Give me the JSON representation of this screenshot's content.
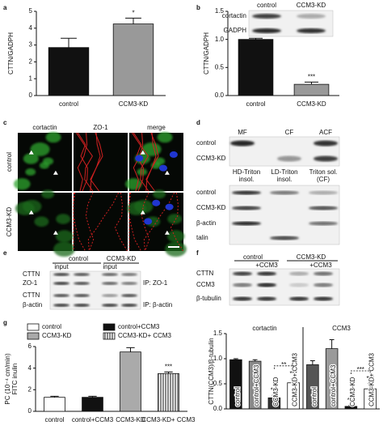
{
  "chart_data": [
    {
      "type": "bar",
      "panel": "a",
      "ylabel": "CTTN/GADPH",
      "categories": [
        "control",
        "CCM3-KD"
      ],
      "values": [
        2.85,
        4.25
      ],
      "errors": [
        0.55,
        0.35
      ],
      "colors": [
        "#111111",
        "#999999"
      ],
      "significance": [
        null,
        "*"
      ],
      "ylim": [
        0,
        5
      ],
      "yticks": [
        0,
        1,
        2,
        3,
        4,
        5
      ]
    },
    {
      "type": "bar",
      "panel": "b",
      "ylabel": "CTTN/GADPH",
      "categories": [
        "control",
        "CCM3-KD"
      ],
      "values": [
        1.0,
        0.2
      ],
      "errors": [
        0.02,
        0.04
      ],
      "colors": [
        "#111111",
        "#999999"
      ],
      "significance": [
        null,
        "***"
      ],
      "ylim": [
        0,
        1.5
      ],
      "yticks": [
        {
          "value": 0,
          "label": "0.0"
        },
        {
          "value": 0.5,
          "label": "0.5"
        },
        {
          "value": 1,
          "label": "1.0"
        },
        {
          "value": 1.5,
          "label": "1.5"
        }
      ]
    },
    {
      "type": "bar",
      "panel": "g",
      "ylabel": [
        "PC (10⁻⁴ cm/min)",
        "FITC inulin"
      ],
      "categories": [
        "control",
        "control+CCM3",
        "CCM3-KD",
        "CCM3-KD+ CCM3"
      ],
      "values": [
        1.3,
        1.3,
        5.5,
        3.5
      ],
      "errors": [
        0.1,
        0.1,
        0.4,
        0.15
      ],
      "colors": [
        "#ffffff",
        "#111111",
        "#aaaaaa",
        "#ffffff"
      ],
      "hatch": [
        false,
        false,
        false,
        true
      ],
      "significance": [
        null,
        null,
        null,
        "***"
      ],
      "legend": [
        "control",
        "control+CCM3",
        "CCM3-KD",
        "CCM3-KD+ CCM3"
      ],
      "ylim": [
        0,
        6
      ],
      "yticks": [
        0,
        2,
        4,
        6
      ]
    },
    {
      "type": "bar",
      "ylabel": "CTTN(CCM3)/β-tubulin",
      "groups": [
        "cortactin",
        "CCM3"
      ],
      "categories": [
        "control",
        "control+CCM3",
        "CCM3-KD",
        "CCM3-KD+ CCM3",
        "control",
        "control+CCM3",
        "CCM3-KD",
        "CCM3-KD+ CCM3"
      ],
      "values": [
        0.98,
        0.95,
        0.22,
        0.52,
        0.88,
        1.2,
        0.05,
        0.4
      ],
      "errors": [
        0.02,
        0.03,
        0.05,
        0.08,
        0.08,
        0.18,
        0.02,
        0.1
      ],
      "colors": [
        "#111111",
        "#8a8a8a",
        "#333333",
        "#ffffff",
        "#555555",
        "#9a9a9a",
        "#111111",
        "#ffffff"
      ],
      "significance": [
        null,
        null,
        "***",
        "***",
        null,
        null,
        "***",
        "***"
      ],
      "brackets": [
        {
          "between": [
            2,
            3
          ],
          "label": "**"
        },
        {
          "between": [
            6,
            7
          ],
          "label": "***"
        }
      ],
      "ylim": [
        0,
        1.5
      ],
      "yticks": [
        {
          "value": 0,
          "label": "0.0"
        },
        {
          "value": 0.5,
          "label": "0.5"
        },
        {
          "value": 1,
          "label": "1.0"
        },
        {
          "value": 1.5,
          "label": "1.5"
        }
      ]
    }
  ],
  "figure": {
    "b_inset": {
      "columns": [
        "control",
        "CCM3-KD"
      ],
      "rows": [
        "cortactin",
        "GADPH"
      ]
    },
    "c": {
      "letter": "c",
      "columns": [
        "cortactin",
        "ZO-1",
        "merge"
      ],
      "rows": [
        "control",
        "CCM3-KD"
      ]
    },
    "d": {
      "letter": "d",
      "top_columns": [
        "MF",
        "CF",
        "ACF"
      ],
      "top_rows": [
        "control",
        "CCM3-KD"
      ],
      "bottom_columns": [
        [
          "HD-Triton",
          "insol."
        ],
        [
          "LD-Triton",
          "insol."
        ],
        [
          "Triton sol.",
          "(CF)"
        ]
      ],
      "bottom_rows": [
        "control",
        "CCM3-KD",
        "β-actin",
        "talin"
      ]
    },
    "e": {
      "letter": "e",
      "groups": [
        "control",
        "CCM3-KD"
      ],
      "subheaders": [
        "input",
        "input"
      ],
      "rows": [
        "CTTN",
        "ZO-1",
        "CTTN",
        "β-actin"
      ],
      "ip_labels": [
        "IP: ZO-1",
        "IP: β-actin"
      ]
    },
    "f": {
      "letter": "f",
      "groups": [
        "control",
        "CCM3-KD"
      ],
      "subheaders": [
        "+CCM3",
        "+CCM3"
      ],
      "rows": [
        "CTTN",
        "CCM3",
        "β-tubulin"
      ]
    }
  }
}
